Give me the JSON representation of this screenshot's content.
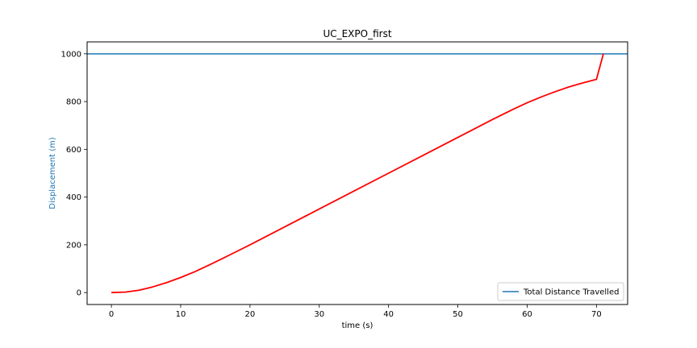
{
  "chart_data": {
    "type": "line",
    "title": "UC_EXPO_first",
    "xlabel": "time (s)",
    "ylabel": "Displacement (m)",
    "xlim": [
      -3.5,
      74.5
    ],
    "ylim": [
      -50,
      1050
    ],
    "xticks": [
      0,
      10,
      20,
      30,
      40,
      50,
      60,
      70
    ],
    "yticks": [
      0,
      200,
      400,
      600,
      800,
      1000
    ],
    "grid": false,
    "legend_position": "lower-right",
    "series": [
      {
        "name": "Total Distance Travelled",
        "kind": "horizontal-line",
        "y": 1000,
        "color": "#1f77b4"
      },
      {
        "kind": "line",
        "color": "#ff0000",
        "x": [
          0,
          2,
          4,
          6,
          8,
          10,
          12,
          14,
          16,
          18,
          20,
          25,
          30,
          35,
          40,
          45,
          50,
          52,
          55,
          58,
          60,
          62,
          64,
          66,
          68,
          70,
          71
        ],
        "y": [
          0,
          2,
          10,
          24,
          42,
          63,
          87,
          114,
          142,
          171,
          200,
          275,
          350,
          425,
          500,
          575,
          650,
          680,
          725,
          768,
          795,
          819,
          841,
          861,
          878,
          893,
          1000
        ]
      }
    ]
  },
  "colors": {
    "ylabel": "#1f77b4",
    "text": "#000000"
  }
}
